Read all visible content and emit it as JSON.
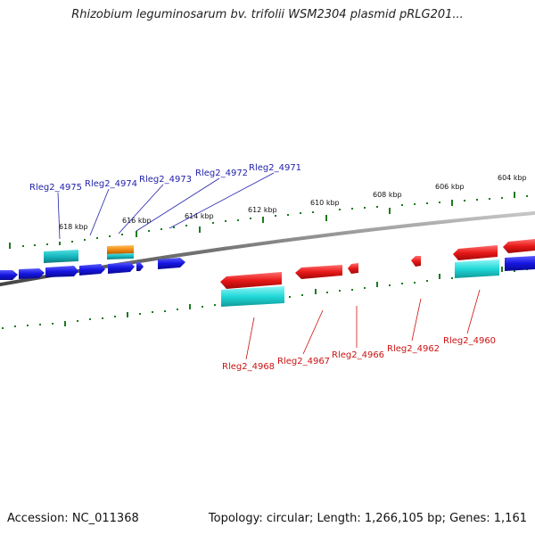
{
  "title": "Rhizobium leguminosarum bv. trifolii WSM2304 plasmid pRLG201...",
  "footer": {
    "accession": "Accession: NC_011368",
    "summary": "Topology: circular; Length: 1,266,105 bp; Genes: 1,161"
  },
  "colors": {
    "backbone": "#8a8a8a",
    "forward_gene": "#1a1ae6",
    "reverse_gene": "#e61a1a",
    "rna_cyan": "#22d4d4",
    "orange_feature": "#f08c14",
    "tick_green": "#117a11",
    "label_blue": "#2222aa",
    "label_red": "#cc1111"
  },
  "scale_ticks": [
    "618 kbp",
    "616 kbp",
    "614 kbp",
    "612 kbp",
    "610 kbp",
    "608 kbp",
    "606 kbp",
    "604 kbp"
  ],
  "top_gene_labels": [
    "Rleg2_4975",
    "Rleg2_4974",
    "Rleg2_4973",
    "Rleg2_4972",
    "Rleg2_4971"
  ],
  "bottom_gene_labels": [
    "Rleg2_4968",
    "Rleg2_4967",
    "Rleg2_4966",
    "Rleg2_4962",
    "Rleg2_4960"
  ]
}
